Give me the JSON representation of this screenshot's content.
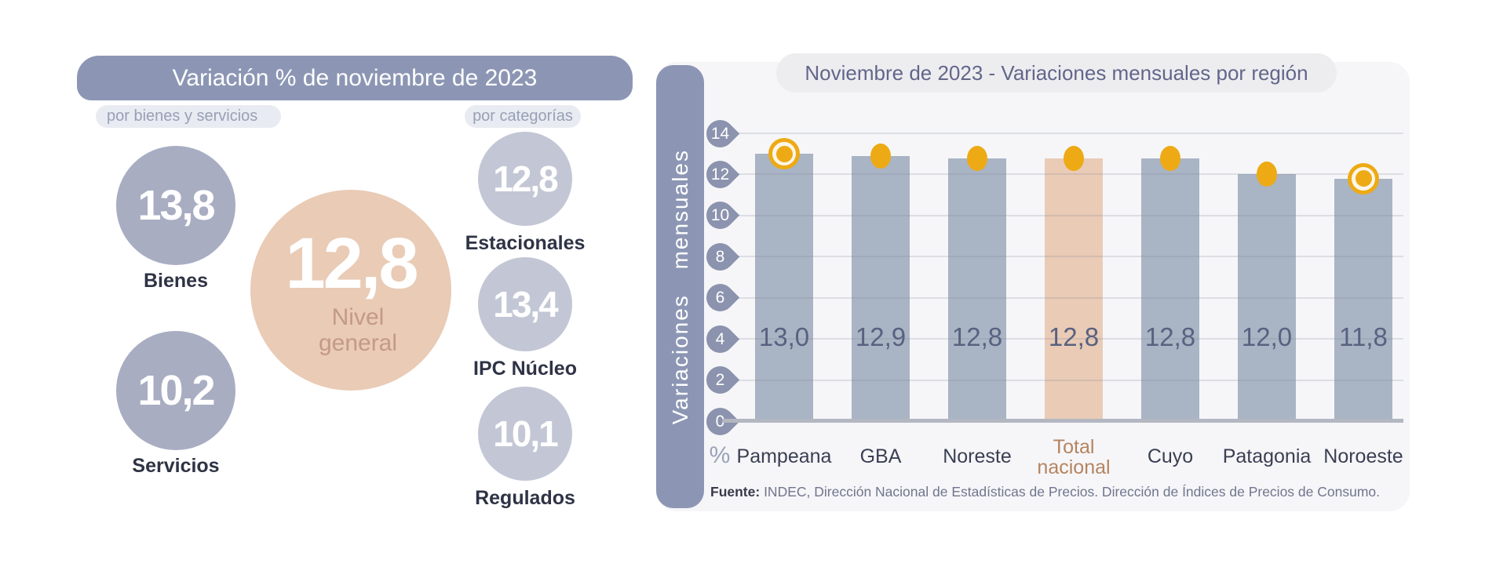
{
  "left_panel": {
    "title": "Variación % de noviembre de 2023",
    "tag_bienes_servicios": "por bienes y servicios",
    "tag_categorias": "por categorías",
    "bienes": {
      "value": "13,8",
      "label": "Bienes"
    },
    "servicios": {
      "value": "10,2",
      "label": "Servicios"
    },
    "nivel_general": {
      "value": "12,8",
      "label_line1": "Nivel",
      "label_line2": "general"
    },
    "categorias": [
      {
        "value": "12,8",
        "label": "Estacionales"
      },
      {
        "value": "13,4",
        "label": "IPC Núcleo"
      },
      {
        "value": "10,1",
        "label": "Regulados"
      }
    ]
  },
  "right_panel": {
    "title": "Noviembre de 2023 - Variaciones mensuales por región",
    "y_axis_label": "Variaciones mensuales",
    "x_axis_unit": "%",
    "source_label": "Fuente:",
    "source_text": " INDEC, Dirección Nacional de Estadísticas de Precios. Dirección de Índices de Precios de Consumo."
  },
  "chart_data": {
    "type": "bar",
    "title": "Noviembre de 2023 - Variaciones mensuales por región",
    "ylabel": "Variaciones mensuales",
    "xlabel": "%",
    "categories": [
      "Pampeana",
      "GBA",
      "Noreste",
      "Total nacional",
      "Cuyo",
      "Patagonia",
      "Noroeste"
    ],
    "values": [
      13.0,
      12.9,
      12.8,
      12.8,
      12.8,
      12.0,
      11.8
    ],
    "value_labels": [
      "13,0",
      "12,9",
      "12,8",
      "12,8",
      "12,8",
      "12,0",
      "11,8"
    ],
    "highlight_index": 3,
    "ringed_marker_indexes": [
      0,
      6
    ],
    "y_ticks": [
      0,
      2,
      4,
      6,
      8,
      10,
      12,
      14
    ],
    "ylim": [
      0,
      14
    ],
    "grid": true,
    "legend": false
  },
  "colors": {
    "header_blue": "#8c96b4",
    "circle_gray": "#a8adc2",
    "circle_light": "#c3c7d5",
    "peach": "#e9cbb6",
    "peach_text": "#c49a84",
    "bar_gray": "#a9b4c4",
    "orange": "#edaa14",
    "dark_label": "#2e3345",
    "value_label": "#596180",
    "axis_label": "#3a3f52",
    "highlight_label": "#b5845f",
    "tick_fill": "#8b93ae",
    "grid": "#d9dae0",
    "baseline": "#b3b7c1",
    "panel_bg": "#f6f6f9",
    "pill_bg": "#e9ebf2",
    "pill_text": "#98a0b6",
    "title_pill_bg": "#ededf0",
    "title_pill_text": "#62668a",
    "percent": "#9aa2b8",
    "source_text": "#6f768c",
    "source_label": "#39394a"
  }
}
